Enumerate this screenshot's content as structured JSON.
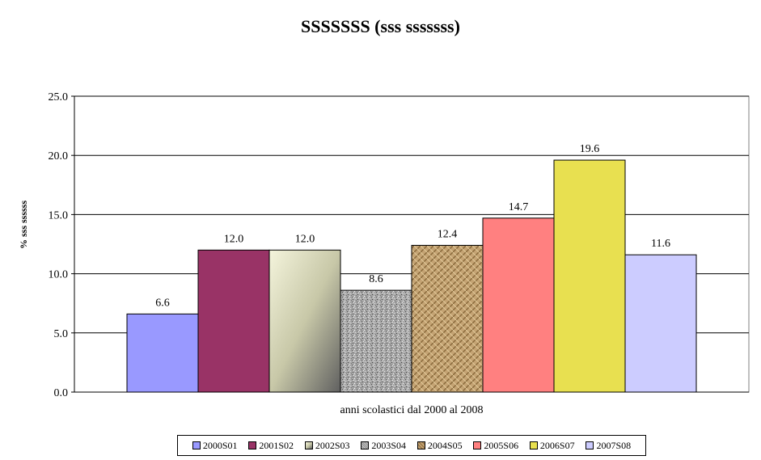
{
  "chart_data": {
    "type": "bar",
    "title": "SSSSSSS (sss sssssss)",
    "xlabel": "anni scolastici dal 2000 al 2008",
    "ylabel": "% sss ssssss",
    "ylim": [
      0,
      25
    ],
    "yticks": [
      "0.0",
      "5.0",
      "10.0",
      "15.0",
      "20.0",
      "25.0"
    ],
    "grid": true,
    "legend_position": "bottom",
    "series": [
      {
        "name": "2000S01",
        "value": 6.6,
        "label": "6.6",
        "color": "#9999ff",
        "fill": "solid"
      },
      {
        "name": "2001S02",
        "value": 12.0,
        "label": "12.0",
        "color": "#993366",
        "fill": "solid"
      },
      {
        "name": "2002S03",
        "value": 12.0,
        "label": "12.0",
        "color": "#c8c8a8",
        "fill": "gradient"
      },
      {
        "name": "2003S04",
        "value": 8.6,
        "label": "8.6",
        "color": "#a0a0a0",
        "fill": "granite"
      },
      {
        "name": "2004S05",
        "value": 12.4,
        "label": "12.4",
        "color": "#b89968",
        "fill": "burlap"
      },
      {
        "name": "2005S06",
        "value": 14.7,
        "label": "14.7",
        "color": "#ff8080",
        "fill": "solid"
      },
      {
        "name": "2006S07",
        "value": 19.6,
        "label": "19.6",
        "color": "#e8e050",
        "fill": "solid"
      },
      {
        "name": "2007S08",
        "value": 11.6,
        "label": "11.6",
        "color": "#ccccff",
        "fill": "solid"
      }
    ]
  }
}
